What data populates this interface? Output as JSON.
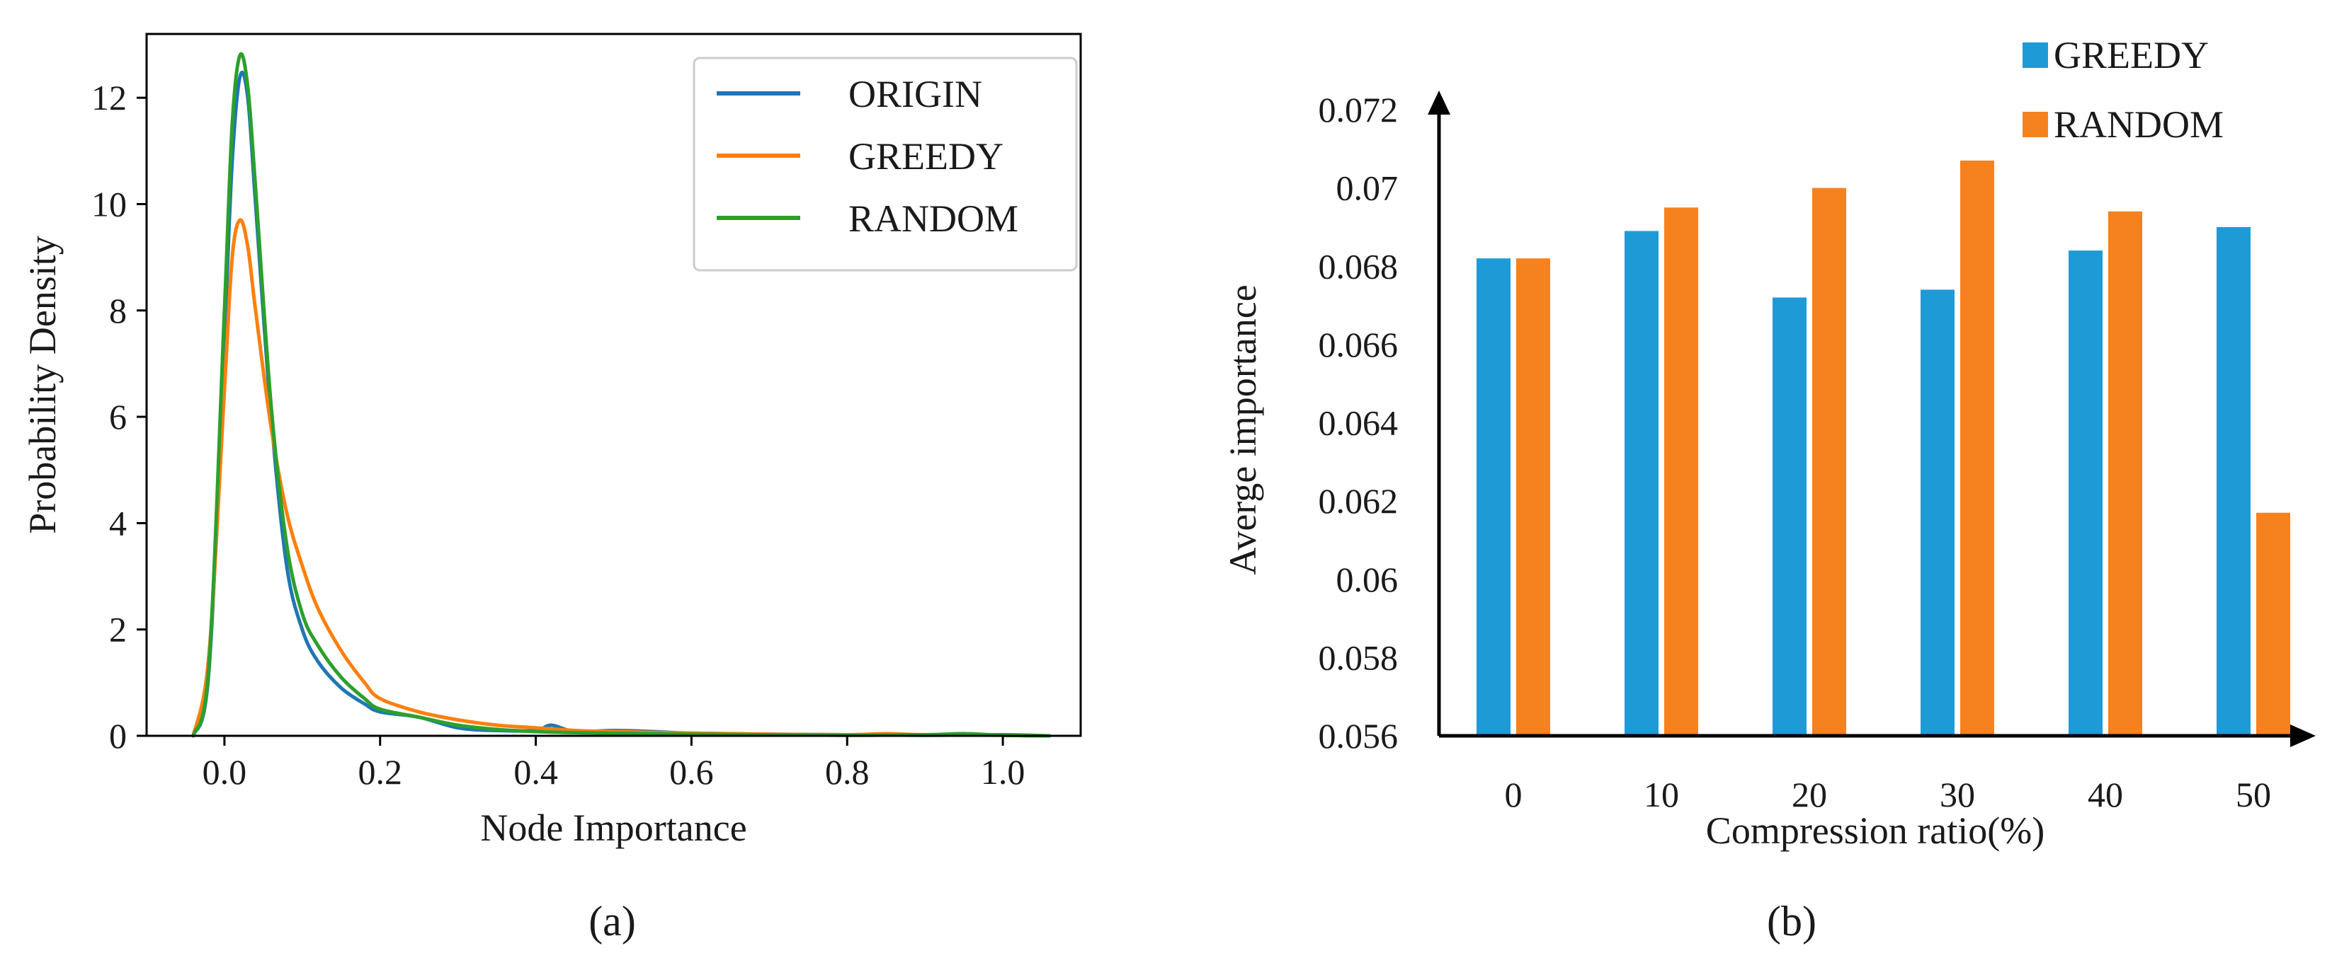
{
  "chart_data": [
    {
      "type": "line",
      "panel_label": "(a)",
      "xlabel": "Node Importance",
      "ylabel": "Probability Density",
      "xlim": [
        -0.1,
        1.1
      ],
      "ylim": [
        0,
        13.2
      ],
      "xticks": [
        0.0,
        0.2,
        0.4,
        0.6,
        0.8,
        1.0
      ],
      "xtick_labels": [
        "0.0",
        "0.2",
        "0.4",
        "0.6",
        "0.8",
        "1.0"
      ],
      "yticks": [
        0,
        2,
        4,
        6,
        8,
        10,
        12
      ],
      "ytick_labels": [
        "0",
        "2",
        "4",
        "6",
        "8",
        "10",
        "12"
      ],
      "grid": false,
      "legend_position": "top-right",
      "series": [
        {
          "name": "ORIGIN",
          "color": "#1f77b4",
          "x": [
            -0.04,
            -0.02,
            0.0,
            0.01,
            0.02,
            0.03,
            0.04,
            0.06,
            0.08,
            0.1,
            0.12,
            0.15,
            0.18,
            0.2,
            0.25,
            0.3,
            0.35,
            0.4,
            0.42,
            0.45,
            0.5,
            0.55,
            0.6,
            0.7,
            0.8,
            0.9,
            1.0,
            1.06
          ],
          "y": [
            0.0,
            1.2,
            7.5,
            10.8,
            12.4,
            12.0,
            10.0,
            6.0,
            3.2,
            2.0,
            1.4,
            0.9,
            0.6,
            0.45,
            0.35,
            0.15,
            0.1,
            0.1,
            0.2,
            0.08,
            0.1,
            0.08,
            0.05,
            0.03,
            0.02,
            0.01,
            0.02,
            0.0
          ]
        },
        {
          "name": "GREEDY",
          "color": "#ff7f0e",
          "x": [
            -0.04,
            -0.02,
            0.0,
            0.01,
            0.02,
            0.03,
            0.04,
            0.06,
            0.08,
            0.1,
            0.12,
            0.15,
            0.18,
            0.2,
            0.25,
            0.3,
            0.35,
            0.4,
            0.45,
            0.5,
            0.6,
            0.7,
            0.8,
            0.85,
            0.9,
            1.0,
            1.06
          ],
          "y": [
            0.0,
            1.5,
            6.5,
            9.0,
            9.7,
            9.2,
            8.0,
            5.8,
            4.2,
            3.2,
            2.4,
            1.6,
            1.0,
            0.7,
            0.45,
            0.3,
            0.2,
            0.15,
            0.1,
            0.08,
            0.05,
            0.03,
            0.02,
            0.04,
            0.02,
            0.01,
            0.0
          ]
        },
        {
          "name": "RANDOM",
          "color": "#2ca02c",
          "x": [
            -0.04,
            -0.02,
            0.0,
            0.01,
            0.02,
            0.03,
            0.04,
            0.06,
            0.08,
            0.1,
            0.12,
            0.15,
            0.18,
            0.2,
            0.25,
            0.3,
            0.35,
            0.4,
            0.45,
            0.5,
            0.6,
            0.7,
            0.8,
            0.9,
            0.95,
            1.0,
            1.06
          ],
          "y": [
            0.0,
            1.3,
            8.0,
            11.5,
            12.8,
            12.2,
            10.3,
            6.2,
            3.6,
            2.3,
            1.7,
            1.1,
            0.7,
            0.5,
            0.35,
            0.2,
            0.12,
            0.08,
            0.06,
            0.05,
            0.03,
            0.02,
            0.01,
            0.02,
            0.04,
            0.01,
            0.0
          ]
        }
      ]
    },
    {
      "type": "bar",
      "panel_label": "(b)",
      "xlabel": "Compression ratio(%)",
      "ylabel": "Averge importance",
      "categories": [
        "0",
        "10",
        "20",
        "30",
        "40",
        "50"
      ],
      "ylim": [
        0.056,
        0.072
      ],
      "yticks": [
        0.056,
        0.058,
        0.06,
        0.062,
        0.064,
        0.066,
        0.068,
        0.07,
        0.072
      ],
      "ytick_labels": [
        "0.056",
        "0.058",
        "0.06",
        "0.062",
        "0.064",
        "0.066",
        "0.068",
        "0.07",
        "0.072"
      ],
      "grid": false,
      "legend_position": "top-right",
      "series": [
        {
          "name": "GREEDY",
          "color": "#1e9bd7",
          "values": [
            0.0682,
            0.0689,
            0.0672,
            0.0674,
            0.0684,
            0.069
          ]
        },
        {
          "name": "RANDOM",
          "color": "#f5821f",
          "values": [
            0.0682,
            0.0695,
            0.07,
            0.0707,
            0.0694,
            0.0617
          ]
        }
      ]
    }
  ]
}
